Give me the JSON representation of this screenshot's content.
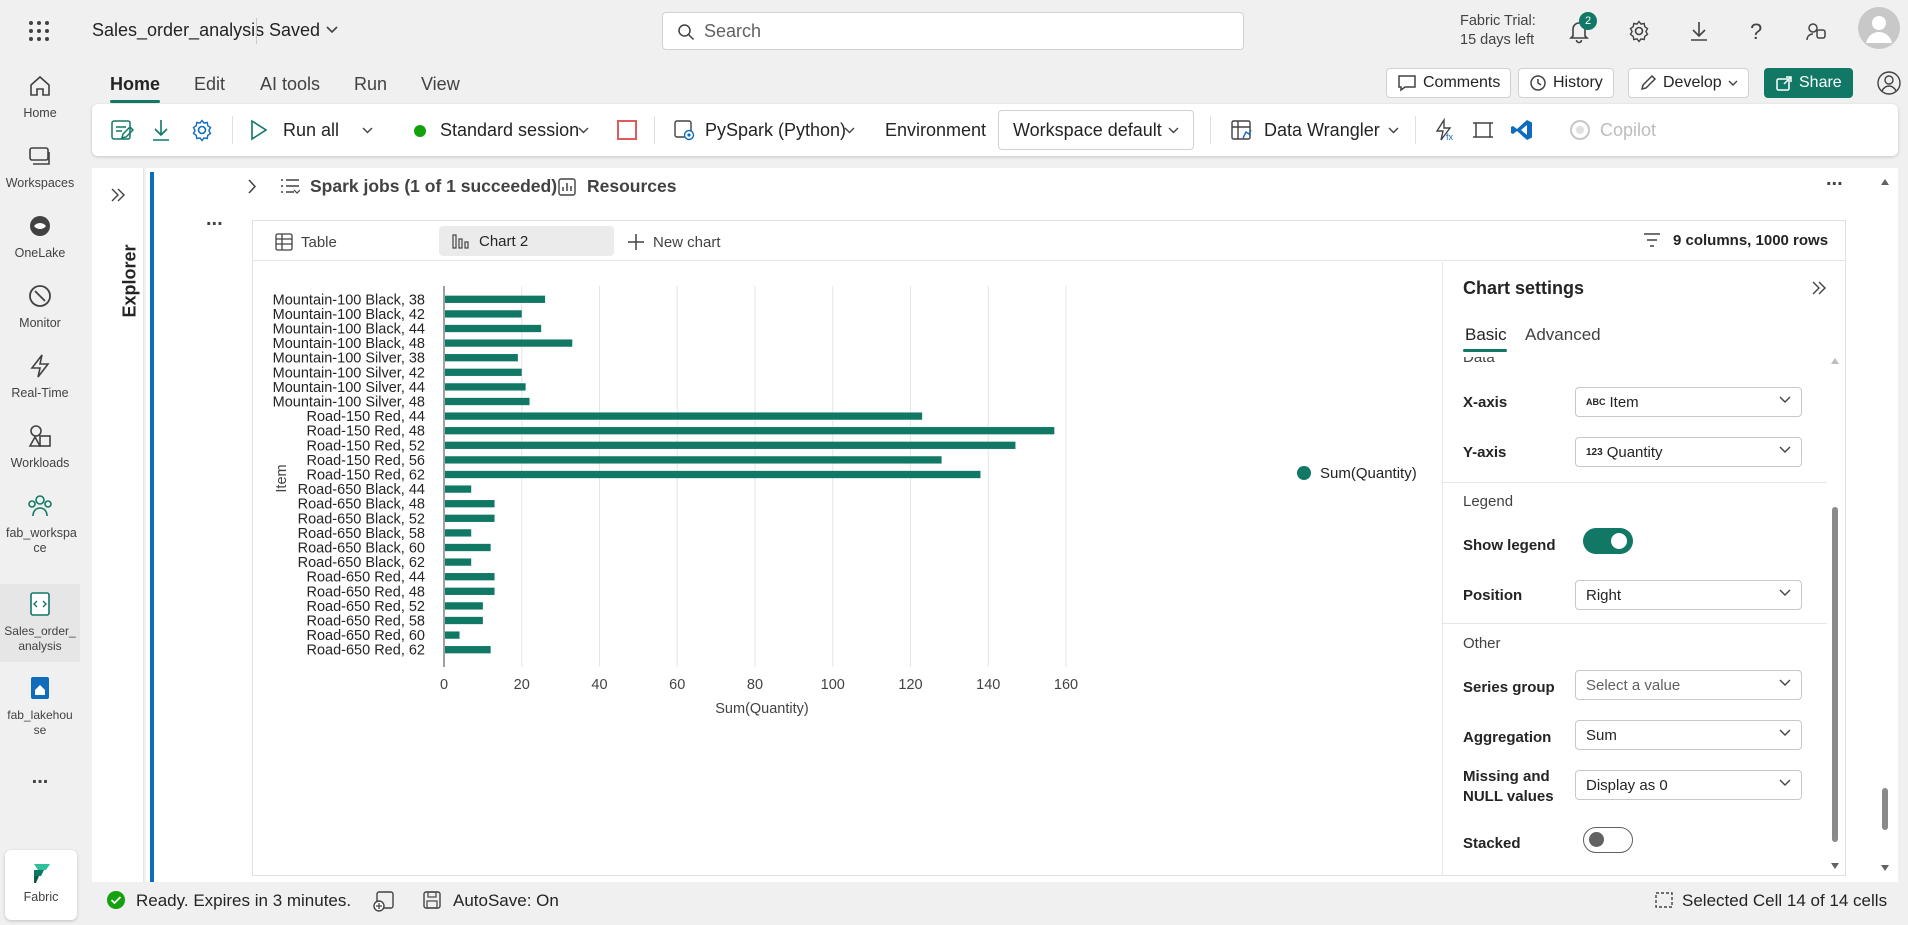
{
  "app": {
    "notebook_name": "Sales_order_analysis",
    "save_state": "Saved",
    "search_placeholder": "Search",
    "trial_line1": "Fabric Trial:",
    "trial_line2": "15 days left",
    "notification_count": "2"
  },
  "rail": {
    "items": [
      {
        "label": "Home"
      },
      {
        "label": "Workspaces"
      },
      {
        "label": "OneLake"
      },
      {
        "label": "Monitor"
      },
      {
        "label": "Real-Time"
      },
      {
        "label": "Workloads"
      },
      {
        "label": "fab_workspa ce"
      },
      {
        "label": "Sales_order_ analysis"
      },
      {
        "label": "fab_lakehou se"
      }
    ],
    "more": "...",
    "brand": "Fabric"
  },
  "ribbon": {
    "tabs": [
      "Home",
      "Edit",
      "AI tools",
      "Run",
      "View"
    ],
    "comments": "Comments",
    "history": "History",
    "develop": "Develop",
    "share": "Share"
  },
  "toolbar": {
    "run_all": "Run all",
    "session": "Standard session",
    "language": "PySpark (Python)",
    "environment_label": "Environment",
    "environment_value": "Workspace default",
    "data_wrangler": "Data Wrangler",
    "copilot": "Copilot"
  },
  "explorer": {
    "label": "Explorer"
  },
  "cell": {
    "spark_jobs": "Spark jobs (1 of 1 succeeded)",
    "resources": "Resources",
    "more": "...",
    "view_tabs": {
      "table": "Table",
      "chart2": "Chart 2",
      "new_chart": "New chart"
    },
    "summary": "9 columns, 1000 rows"
  },
  "chart_data": {
    "type": "bar",
    "orientation": "horizontal",
    "categories": [
      "Mountain-100 Black, 38",
      "Mountain-100 Black, 42",
      "Mountain-100 Black, 44",
      "Mountain-100 Black, 48",
      "Mountain-100 Silver, 38",
      "Mountain-100 Silver, 42",
      "Mountain-100 Silver, 44",
      "Mountain-100 Silver, 48",
      "Road-150 Red, 44",
      "Road-150 Red, 48",
      "Road-150 Red, 52",
      "Road-150 Red, 56",
      "Road-150 Red, 62",
      "Road-650 Black, 44",
      "Road-650 Black, 48",
      "Road-650 Black, 52",
      "Road-650 Black, 58",
      "Road-650 Black, 60",
      "Road-650 Black, 62",
      "Road-650 Red, 44",
      "Road-650 Red, 48",
      "Road-650 Red, 52",
      "Road-650 Red, 58",
      "Road-650 Red, 60",
      "Road-650 Red, 62"
    ],
    "series": [
      {
        "name": "Sum(Quantity)",
        "color": "#117865",
        "values": [
          26,
          20,
          25,
          33,
          19,
          20,
          21,
          22,
          123,
          157,
          147,
          128,
          138,
          7,
          13,
          13,
          7,
          12,
          7,
          13,
          13,
          10,
          10,
          4,
          12
        ]
      }
    ],
    "xlabel": "Sum(Quantity)",
    "ylabel": "Item",
    "xlim": [
      0,
      160
    ],
    "xticks": [
      "0",
      "20",
      "40",
      "60",
      "80",
      "100",
      "120",
      "140",
      "160"
    ],
    "grid": true,
    "legend": "right"
  },
  "settings": {
    "title": "Chart settings",
    "tabs": {
      "basic": "Basic",
      "advanced": "Advanced"
    },
    "data_head": "Data",
    "x_axis_label": "X-axis",
    "x_axis_type": "ABC",
    "x_axis_value": "Item",
    "y_axis_label": "Y-axis",
    "y_axis_type": "123",
    "y_axis_value": "Quantity",
    "legend_head": "Legend",
    "show_legend_label": "Show legend",
    "show_legend_on": true,
    "position_label": "Position",
    "position_value": "Right",
    "other_head": "Other",
    "series_group_label": "Series group",
    "series_group_placeholder": "Select a value",
    "aggregation_label": "Aggregation",
    "aggregation_value": "Sum",
    "missing_label_1": "Missing and",
    "missing_label_2": "NULL values",
    "missing_value": "Display as 0",
    "stacked_label": "Stacked",
    "stacked_on": false
  },
  "status": {
    "ready": "Ready. Expires in 3 minutes.",
    "autosave": "AutoSave: On",
    "selected": "Selected Cell 14 of 14 cells"
  },
  "colors": {
    "accent": "#117865",
    "blue_bar": "#0f6cbd"
  }
}
